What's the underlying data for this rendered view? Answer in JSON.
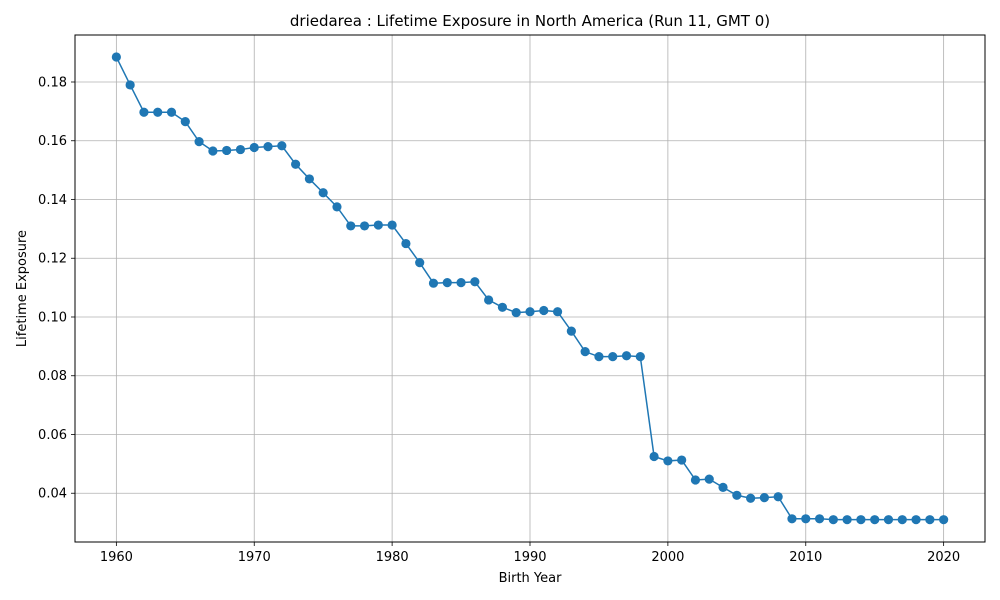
{
  "chart_data": {
    "type": "line",
    "title": "driedarea : Lifetime Exposure in North America (Run 11, GMT 0)",
    "xlabel": "Birth Year",
    "ylabel": "Lifetime Exposure",
    "xlim": [
      1957,
      2023
    ],
    "ylim": [
      0.0234,
      0.196
    ],
    "xticks": [
      "1960",
      "1970",
      "1980",
      "1990",
      "2000",
      "2010",
      "2020"
    ],
    "yticks": [
      "0.04",
      "0.06",
      "0.08",
      "0.10",
      "0.12",
      "0.14",
      "0.16",
      "0.18"
    ],
    "grid": true,
    "line_color": "#1f77b4",
    "marker": "circle",
    "series": [
      {
        "x": [
          1960,
          1961,
          1962,
          1963,
          1964,
          1965,
          1966,
          1967,
          1968,
          1969,
          1970,
          1971,
          1972,
          1973,
          1974,
          1975,
          1976,
          1977,
          1978,
          1979,
          1980,
          1981,
          1982,
          1983,
          1984,
          1985,
          1986,
          1987,
          1988,
          1989,
          1990,
          1991,
          1992,
          1993,
          1994,
          1995,
          1996,
          1997,
          1998,
          1999,
          2000,
          2001,
          2002,
          2003,
          2004,
          2005,
          2006,
          2007,
          2008,
          2009,
          2010,
          2011,
          2012,
          2013,
          2014,
          2015,
          2016,
          2017,
          2018,
          2019,
          2020
        ],
        "values": [
          0.1885,
          0.179,
          0.1697,
          0.1697,
          0.1697,
          0.1665,
          0.1597,
          0.1565,
          0.1567,
          0.157,
          0.1577,
          0.158,
          0.1583,
          0.152,
          0.147,
          0.1423,
          0.1375,
          0.131,
          0.131,
          0.1313,
          0.1313,
          0.125,
          0.1185,
          0.1115,
          0.1117,
          0.1117,
          0.112,
          0.1058,
          0.1033,
          0.1015,
          0.1018,
          0.1022,
          0.1018,
          0.0952,
          0.0882,
          0.0865,
          0.0865,
          0.0868,
          0.0865,
          0.0525,
          0.051,
          0.0513,
          0.0445,
          0.0448,
          0.042,
          0.0393,
          0.0383,
          0.0385,
          0.0388,
          0.0313,
          0.0313,
          0.0313,
          0.031,
          0.031,
          0.031,
          0.031,
          0.031,
          0.031,
          0.031,
          0.031,
          0.031
        ]
      }
    ]
  }
}
